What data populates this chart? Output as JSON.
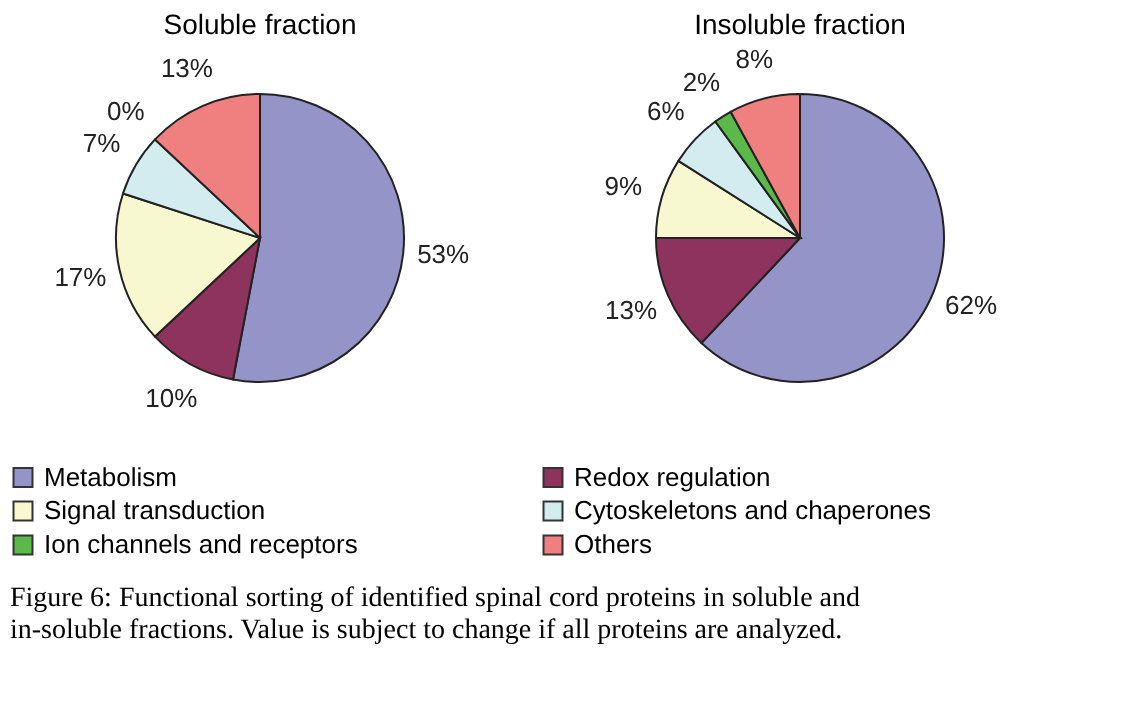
{
  "chart_data": {
    "type": "pie",
    "categories": [
      "Metabolism",
      "Redox regulation",
      "Signal transduction",
      "Cytoskeletons and chaperones",
      "Ion channels and receptors",
      "Others"
    ],
    "colors": [
      "#9494c8",
      "#8e325e",
      "#f8f8d0",
      "#d2ecf0",
      "#5bb84a",
      "#f08080"
    ],
    "legend": "bottom",
    "series": [
      {
        "name": "Soluble fraction",
        "values": [
          53,
          10,
          17,
          7,
          0,
          13
        ],
        "value_labels": [
          "53%",
          "10%",
          "17%",
          "7%",
          "0%",
          "13%"
        ]
      },
      {
        "name": "Insoluble fraction",
        "values": [
          62,
          13,
          9,
          6,
          2,
          8
        ],
        "value_labels": [
          "62%",
          "13%",
          "9%",
          "6%",
          "2%",
          "8%"
        ]
      }
    ],
    "annotations": [
      "Figure 6: Functional sorting of identified spinal cord proteins in soluble and in-soluble fractions. Value is subject to change if all proteins are analyzed."
    ]
  }
}
